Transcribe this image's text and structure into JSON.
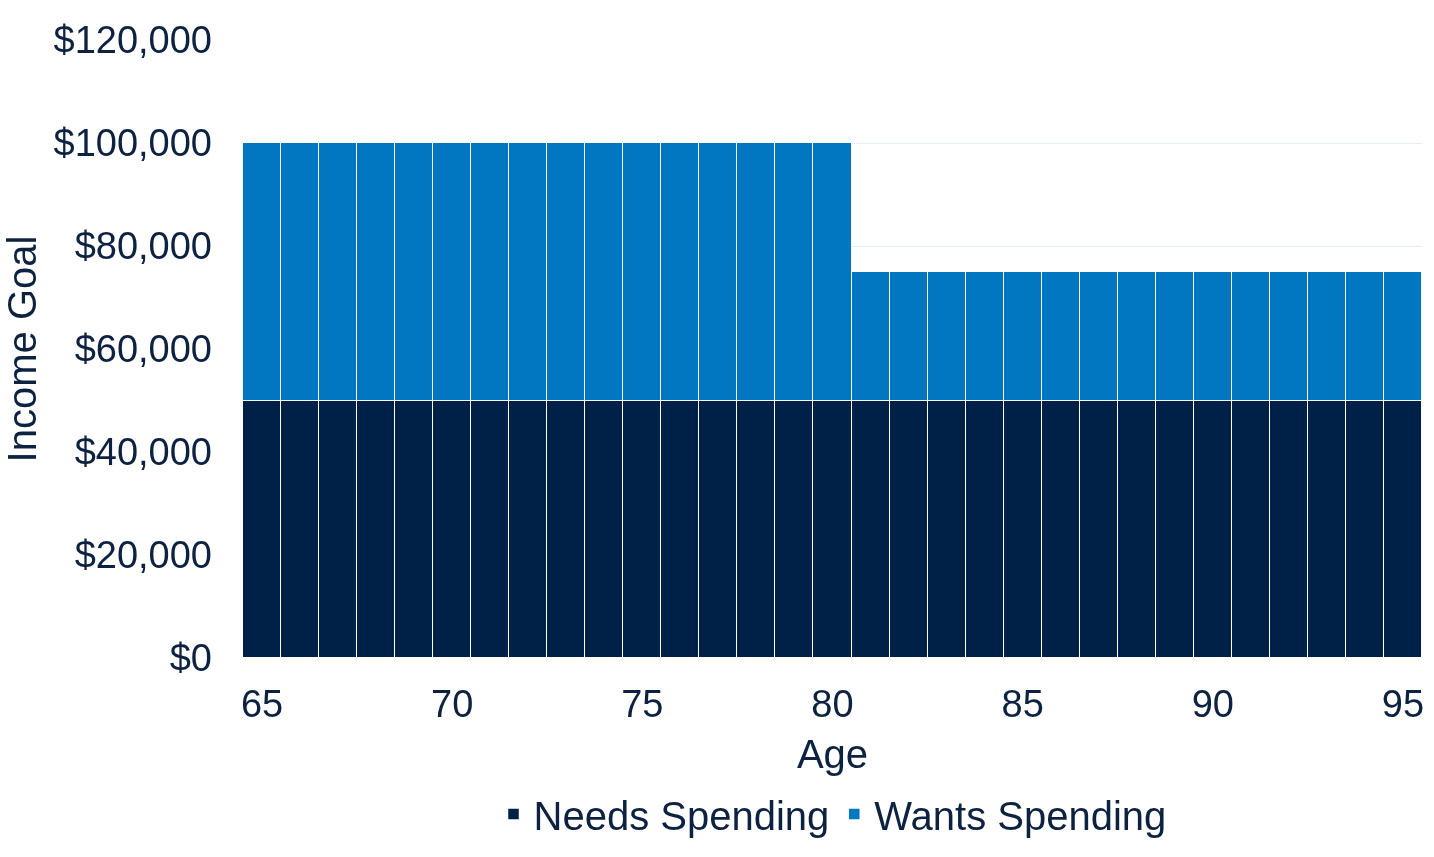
{
  "chart_data": {
    "type": "bar",
    "stacked": true,
    "xlabel": "Age",
    "ylabel": "Income Goal",
    "x": [
      65,
      66,
      67,
      68,
      69,
      70,
      71,
      72,
      73,
      74,
      75,
      76,
      77,
      78,
      79,
      80,
      81,
      82,
      83,
      84,
      85,
      86,
      87,
      88,
      89,
      90,
      91,
      92,
      93,
      94,
      95
    ],
    "series": [
      {
        "name": "Needs Spending",
        "color": "#002147",
        "values": [
          50000,
          50000,
          50000,
          50000,
          50000,
          50000,
          50000,
          50000,
          50000,
          50000,
          50000,
          50000,
          50000,
          50000,
          50000,
          50000,
          50000,
          50000,
          50000,
          50000,
          50000,
          50000,
          50000,
          50000,
          50000,
          50000,
          50000,
          50000,
          50000,
          50000,
          50000
        ]
      },
      {
        "name": "Wants Spending",
        "color": "#0077c0",
        "values": [
          50000,
          50000,
          50000,
          50000,
          50000,
          50000,
          50000,
          50000,
          50000,
          50000,
          50000,
          50000,
          50000,
          50000,
          50000,
          50000,
          25000,
          25000,
          25000,
          25000,
          25000,
          25000,
          25000,
          25000,
          25000,
          25000,
          25000,
          25000,
          25000,
          25000,
          25000
        ]
      }
    ],
    "xlim": [
      64.5,
      95.5
    ],
    "xticks": [
      65,
      70,
      75,
      80,
      85,
      90,
      95
    ],
    "ylim": [
      0,
      120000
    ],
    "yticks": [
      {
        "value": 0,
        "label": "$0"
      },
      {
        "value": 20000,
        "label": "$20,000"
      },
      {
        "value": 40000,
        "label": "$40,000"
      },
      {
        "value": 60000,
        "label": "$60,000"
      },
      {
        "value": 80000,
        "label": "$80,000"
      },
      {
        "value": 100000,
        "label": "$100,000"
      },
      {
        "value": 120000,
        "label": "$120,000"
      }
    ],
    "grid": "y",
    "legend": "bottom"
  }
}
